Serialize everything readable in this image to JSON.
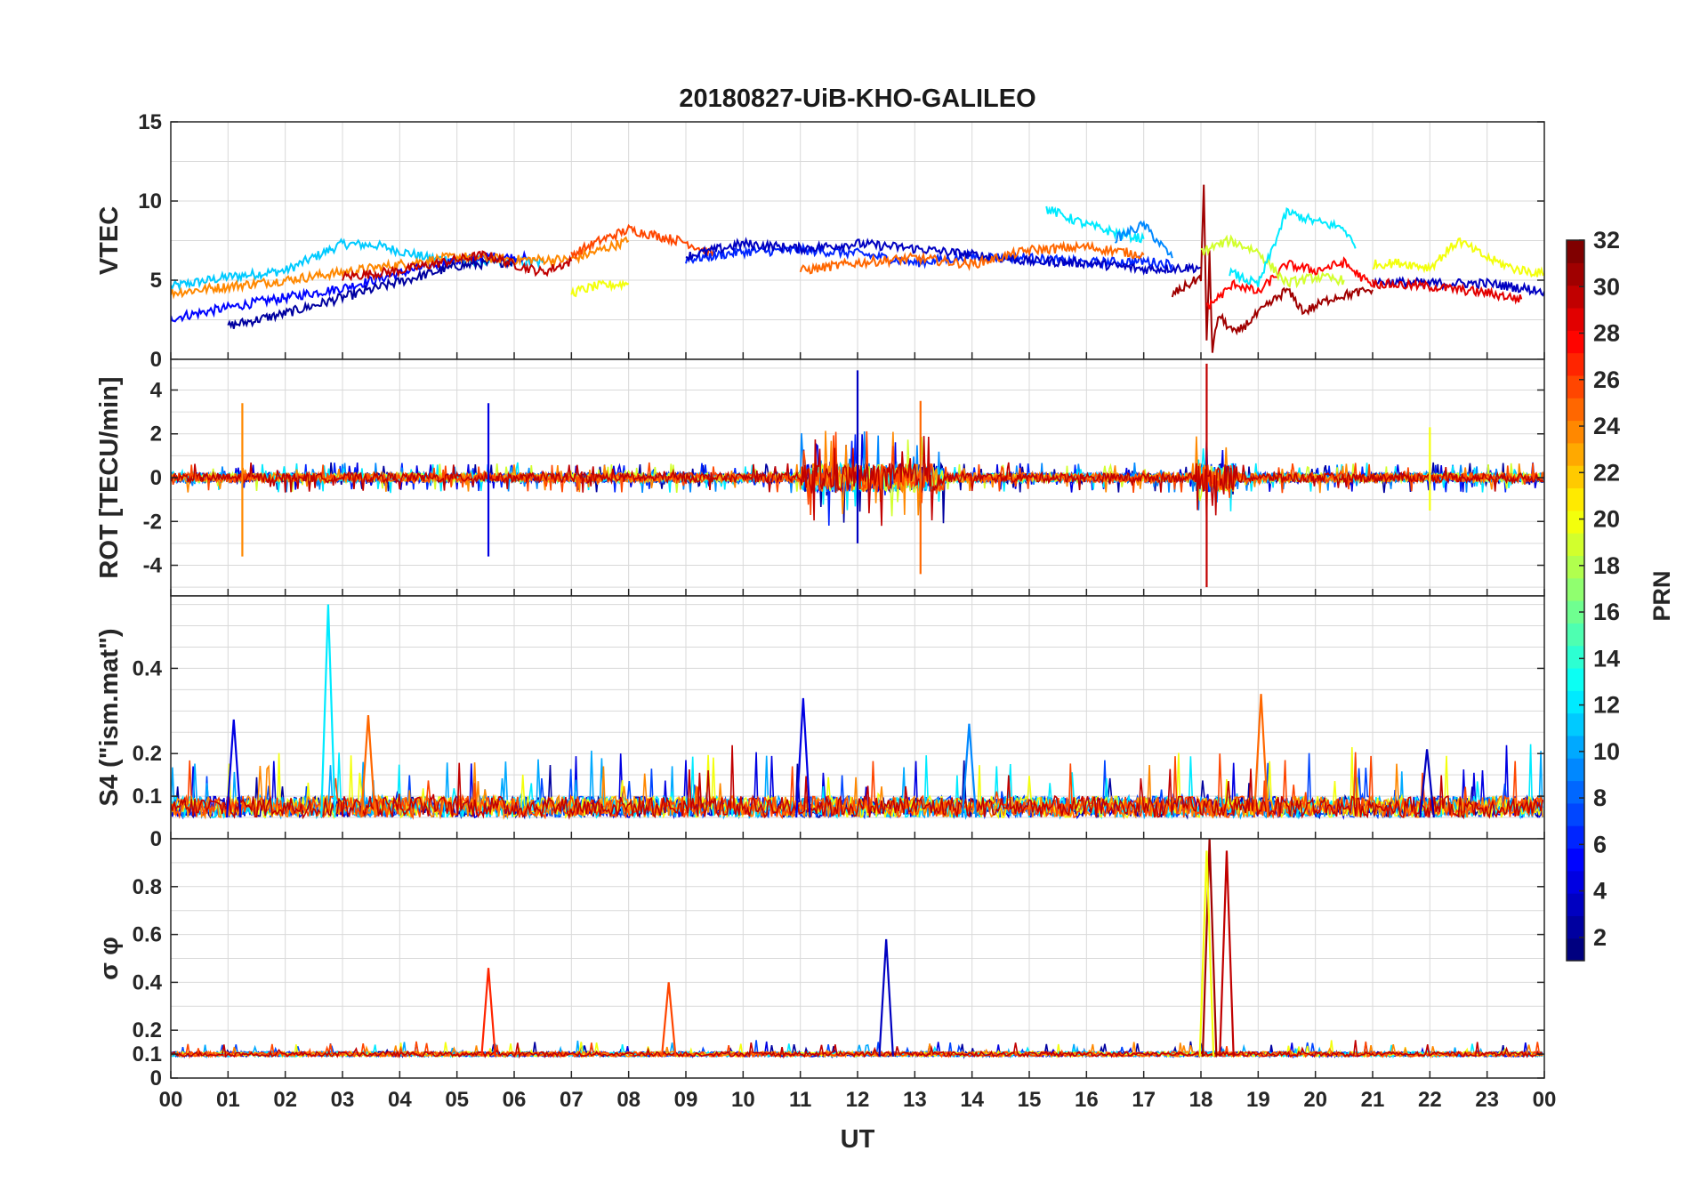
{
  "chart_data": {
    "type": "line",
    "title": "20180827-UiB-KHO-GALILEO",
    "xlabel": "UT",
    "x_tick_labels": [
      "00",
      "01",
      "02",
      "03",
      "04",
      "05",
      "06",
      "07",
      "08",
      "09",
      "10",
      "11",
      "12",
      "13",
      "14",
      "15",
      "16",
      "17",
      "18",
      "19",
      "20",
      "21",
      "22",
      "23",
      "00"
    ],
    "xlim_hours": [
      0,
      24
    ],
    "grid": true,
    "colormap": "jet",
    "colorbar": {
      "label": "PRN",
      "range": [
        1,
        32
      ],
      "tick_labels": [
        "2",
        "4",
        "6",
        "8",
        "10",
        "12",
        "14",
        "16",
        "18",
        "20",
        "22",
        "24",
        "26",
        "28",
        "30",
        "32"
      ],
      "placement": "right"
    },
    "panels": [
      {
        "id": "vtec",
        "ylabel": "VTEC",
        "ylim": [
          0,
          15
        ],
        "ytick_labels": [
          "0",
          "5",
          "10",
          "15"
        ],
        "ytick_values": [
          0,
          5,
          10,
          15
        ],
        "series": [
          {
            "prn": 11,
            "x": [
              0.0,
              1.0,
              2.0,
              3.0,
              3.6,
              4.5,
              5.5,
              6.5
            ],
            "y": [
              4.6,
              5.2,
              5.6,
              7.3,
              7.2,
              6.4,
              6.2,
              6.1
            ]
          },
          {
            "prn": 5,
            "x": [
              0.0,
              1.5,
              3.0,
              4.5,
              5.5,
              6.2
            ],
            "y": [
              2.6,
              3.6,
              4.5,
              5.9,
              6.5,
              6.4
            ]
          },
          {
            "prn": 2,
            "x": [
              1.0,
              2.0,
              3.0,
              4.0,
              5.0,
              6.0
            ],
            "y": [
              2.1,
              2.9,
              3.9,
              4.9,
              5.9,
              6.2
            ]
          },
          {
            "prn": 24,
            "x": [
              0.0,
              1.0,
              2.0,
              3.0,
              4.0,
              5.0,
              6.0,
              7.0,
              8.0
            ],
            "y": [
              4.2,
              4.6,
              5.0,
              5.5,
              6.0,
              6.5,
              6.3,
              6.3,
              7.5
            ]
          },
          {
            "prn": 30,
            "x": [
              3.0,
              4.0,
              5.0,
              5.5,
              6.0,
              6.5,
              7.0
            ],
            "y": [
              5.2,
              5.6,
              6.3,
              6.6,
              6.0,
              5.5,
              6.2
            ]
          },
          {
            "prn": 26,
            "x": [
              7.0,
              7.5,
              8.0,
              8.5,
              9.0,
              9.5
            ],
            "y": [
              6.6,
              7.5,
              8.2,
              7.8,
              7.4,
              6.6
            ]
          },
          {
            "prn": 20,
            "x": [
              7.0,
              7.4,
              8.0
            ],
            "y": [
              4.2,
              4.6,
              4.8
            ]
          },
          {
            "prn": 6,
            "x": [
              9.0,
              10.0,
              11.0,
              12.0,
              13.0,
              14.0,
              15.0,
              16.0,
              17.0,
              17.5
            ],
            "y": [
              6.3,
              6.8,
              6.9,
              6.7,
              6.1,
              6.5,
              6.4,
              6.1,
              6.2,
              6.0
            ]
          },
          {
            "prn": 3,
            "x": [
              9.0,
              10.0,
              11.0,
              12.0,
              13.0,
              14.0,
              15.0,
              16.0,
              17.0,
              18.0
            ],
            "y": [
              6.5,
              7.3,
              7.0,
              7.3,
              7.0,
              6.6,
              6.2,
              6.1,
              5.7,
              5.8
            ]
          },
          {
            "prn": 25,
            "x": [
              11.0,
              12.0,
              13.0,
              14.0,
              15.0,
              16.0,
              17.0
            ],
            "y": [
              5.6,
              6.1,
              6.4,
              6.0,
              6.9,
              7.1,
              6.6
            ]
          },
          {
            "prn": 12,
            "x": [
              15.3,
              16.0,
              16.5,
              17.0
            ],
            "y": [
              9.5,
              8.5,
              8.0,
              7.6
            ]
          },
          {
            "prn": 9,
            "x": [
              16.5,
              17.0,
              17.5
            ],
            "y": [
              7.6,
              8.5,
              6.4
            ]
          },
          {
            "prn": 31,
            "x": [
              17.5,
              18.0,
              18.05,
              18.1,
              18.15,
              18.2,
              18.3,
              18.6,
              19.0,
              19.5,
              19.8,
              20.3,
              21.0
            ],
            "y": [
              4.1,
              5.2,
              10.8,
              1.2,
              6.6,
              0.4,
              2.8,
              1.6,
              2.9,
              4.4,
              3.0,
              3.9,
              4.4
            ]
          },
          {
            "prn": 28,
            "x": [
              18.1,
              18.6,
              19.0,
              19.5,
              20.0,
              20.5,
              21.0
            ],
            "y": [
              3.3,
              4.8,
              4.2,
              6.0,
              5.6,
              6.1,
              4.6
            ]
          },
          {
            "prn": 19,
            "x": [
              18.0,
              18.5,
              19.0,
              19.5,
              20.0,
              20.5
            ],
            "y": [
              6.8,
              7.5,
              6.8,
              4.8,
              5.2,
              5.0
            ]
          },
          {
            "prn": 12,
            "x": [
              18.5,
              19.0,
              19.5,
              20.0,
              20.5,
              20.7
            ],
            "y": [
              5.5,
              4.7,
              9.3,
              8.7,
              8.3,
              7.0
            ]
          },
          {
            "prn": 20,
            "x": [
              21.0,
              21.5,
              22.0,
              22.5,
              23.0,
              23.5,
              24.0
            ],
            "y": [
              6.0,
              6.1,
              5.8,
              7.5,
              6.4,
              5.7,
              5.4
            ]
          },
          {
            "prn": 3,
            "x": [
              21.0,
              22.0,
              23.0,
              24.0
            ],
            "y": [
              4.9,
              4.8,
              4.8,
              4.3
            ]
          },
          {
            "prn": 29,
            "x": [
              21.0,
              22.0,
              23.0,
              23.6
            ],
            "y": [
              4.8,
              4.6,
              4.2,
              3.8
            ]
          }
        ]
      },
      {
        "id": "rot",
        "ylabel": "ROT [TECU/min]",
        "ylim": [
          -5.4,
          5.4
        ],
        "ytick_labels": [
          "-4",
          "-2",
          "0",
          "2",
          "4"
        ],
        "ytick_values": [
          -4,
          -2,
          0,
          2,
          4
        ],
        "spikes": [
          {
            "prn": 24,
            "x": 1.25,
            "y": [
              -3.6,
              3.4
            ]
          },
          {
            "prn": 4,
            "x": 5.55,
            "y": [
              -3.6,
              3.4
            ]
          },
          {
            "prn": 3,
            "x": 12.0,
            "y": [
              -3.0,
              4.9
            ]
          },
          {
            "prn": 25,
            "x": 13.1,
            "y": [
              -4.4,
              3.5
            ]
          },
          {
            "prn": 30,
            "x": 18.1,
            "y": [
              -5.0,
              5.2
            ]
          },
          {
            "prn": 20,
            "x": 22.0,
            "y": [
              -1.5,
              2.3
            ]
          }
        ]
      },
      {
        "id": "s4",
        "ylabel": "S4 (\"ism.mat\")",
        "ylim": [
          0,
          0.57
        ],
        "ytick_labels": [
          "0",
          "0.1",
          "0.2",
          "0.4"
        ],
        "ytick_values": [
          0,
          0.1,
          0.2,
          0.4
        ],
        "peaks": [
          {
            "prn": 4,
            "x": 1.1,
            "y": 0.28
          },
          {
            "prn": 12,
            "x": 2.75,
            "y": 0.55
          },
          {
            "prn": 25,
            "x": 3.45,
            "y": 0.29
          },
          {
            "prn": 4,
            "x": 11.05,
            "y": 0.33
          },
          {
            "prn": 9,
            "x": 13.95,
            "y": 0.27
          },
          {
            "prn": 25,
            "x": 19.05,
            "y": 0.34
          },
          {
            "prn": 3,
            "x": 21.95,
            "y": 0.21
          }
        ]
      },
      {
        "id": "sigma",
        "ylabel": "σ φ",
        "ylim": [
          0,
          1.0
        ],
        "ytick_labels": [
          "0",
          "0.1",
          "0.2",
          "0.4",
          "0.6",
          "0.8"
        ],
        "ytick_values": [
          0,
          0.1,
          0.2,
          0.4,
          0.6,
          0.8
        ],
        "peaks": [
          {
            "prn": 27,
            "x": 5.55,
            "y": 0.46
          },
          {
            "prn": 3,
            "x": 12.5,
            "y": 0.58
          },
          {
            "prn": 26,
            "x": 8.7,
            "y": 0.4
          },
          {
            "prn": 31,
            "x": 18.15,
            "y": 1.0
          },
          {
            "prn": 20,
            "x": 18.1,
            "y": 0.95
          },
          {
            "prn": 30,
            "x": 18.45,
            "y": 0.95
          }
        ]
      }
    ]
  }
}
